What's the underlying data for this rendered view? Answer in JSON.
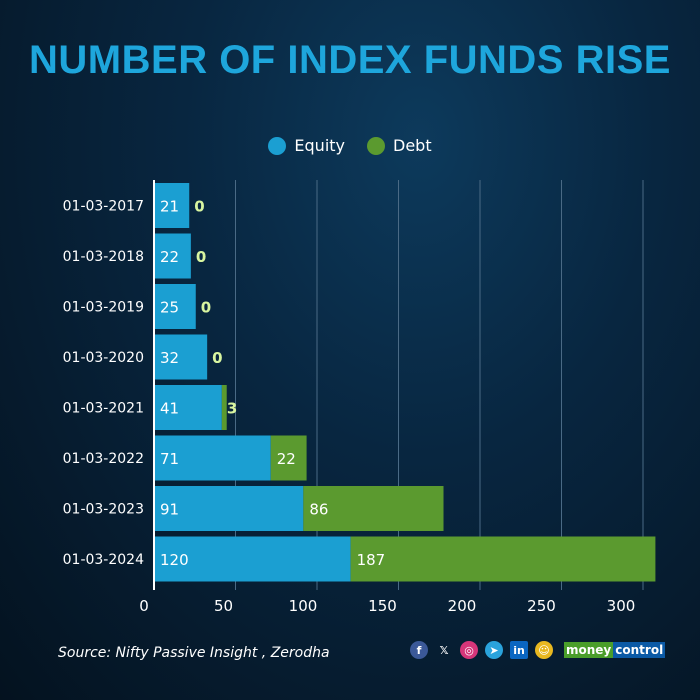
{
  "chart_data": {
    "type": "bar",
    "stacked": true,
    "orientation": "horizontal",
    "title": "NUMBER OF INDEX FUNDS RISE",
    "categories": [
      "01-03-2017",
      "01-03-2018",
      "01-03-2019",
      "01-03-2020",
      "01-03-2021",
      "01-03-2022",
      "01-03-2023",
      "01-03-2024"
    ],
    "series": [
      {
        "name": "Equity",
        "color": "#1b9fd2",
        "values": [
          21,
          22,
          25,
          32,
          41,
          71,
          91,
          120
        ]
      },
      {
        "name": "Debt",
        "color": "#5b9a2f",
        "values": [
          0,
          0,
          0,
          0,
          3,
          22,
          86,
          187
        ]
      }
    ],
    "xticks": [
      "0",
      "50",
      "100",
      "150",
      "200",
      "250",
      "300"
    ],
    "xlim": [
      0,
      310
    ],
    "grid": true,
    "legend": "top-center"
  },
  "footer": {
    "source": "Source: Nifty Passive Insight , Zerodha",
    "brand_a": "money",
    "brand_b": "control",
    "icons": [
      "facebook-icon",
      "x-icon",
      "instagram-icon",
      "telegram-icon",
      "linkedin-icon",
      "snapchat-icon"
    ]
  }
}
